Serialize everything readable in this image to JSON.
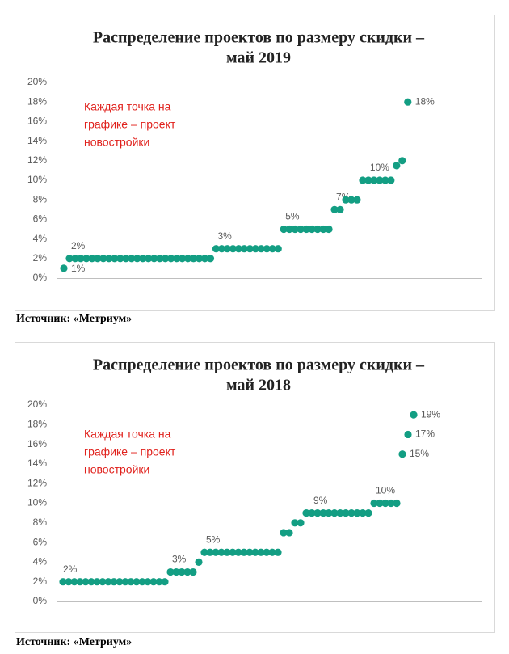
{
  "chart_data": [
    {
      "type": "dotplot",
      "title": [
        "Распределение проектов по размеру скидки –",
        "май 2019"
      ],
      "annotation": [
        "Каждая точка на",
        "графике – проект",
        "новостройки"
      ],
      "color": "#139e83",
      "ylim": [
        0,
        20
      ],
      "yticks": [
        {
          "value": 0,
          "label": "0%"
        },
        {
          "value": 2,
          "label": "2%"
        },
        {
          "value": 4,
          "label": "4%"
        },
        {
          "value": 6,
          "label": "6%"
        },
        {
          "value": 8,
          "label": "8%"
        },
        {
          "value": 10,
          "label": "10%"
        },
        {
          "value": 12,
          "label": "12%"
        },
        {
          "value": 14,
          "label": "14%"
        },
        {
          "value": 16,
          "label": "16%"
        },
        {
          "value": 18,
          "label": "18%"
        },
        {
          "value": 20,
          "label": "20%"
        }
      ],
      "values": [
        1,
        2,
        2,
        2,
        2,
        2,
        2,
        2,
        2,
        2,
        2,
        2,
        2,
        2,
        2,
        2,
        2,
        2,
        2,
        2,
        2,
        2,
        2,
        2,
        2,
        2,
        2,
        3,
        3,
        3,
        3,
        3,
        3,
        3,
        3,
        3,
        3,
        3,
        3,
        5,
        5,
        5,
        5,
        5,
        5,
        5,
        5,
        5,
        7,
        7,
        8,
        8,
        8,
        10,
        10,
        10,
        10,
        10,
        10,
        11.5,
        12,
        18
      ],
      "value_labels": [
        "1%",
        "2%",
        null,
        null,
        null,
        null,
        null,
        null,
        null,
        null,
        null,
        null,
        null,
        null,
        null,
        null,
        null,
        null,
        null,
        null,
        null,
        null,
        null,
        null,
        null,
        null,
        null,
        "3%",
        null,
        null,
        null,
        null,
        null,
        null,
        null,
        null,
        null,
        null,
        null,
        "5%",
        null,
        null,
        null,
        null,
        null,
        null,
        null,
        null,
        "7%",
        null,
        null,
        null,
        null,
        null,
        "10%",
        null,
        null,
        null,
        null,
        null,
        null,
        "18%"
      ],
      "source": "Источник: «Метриум»"
    },
    {
      "type": "dotplot",
      "title": [
        "Распределение проектов по размеру скидки –",
        "май 2018"
      ],
      "annotation": [
        "Каждая точка на",
        "графике – проект",
        "новостройки"
      ],
      "color": "#139e83",
      "ylim": [
        0,
        20
      ],
      "yticks": [
        {
          "value": 0,
          "label": "0%"
        },
        {
          "value": 2,
          "label": "2%"
        },
        {
          "value": 4,
          "label": "4%"
        },
        {
          "value": 6,
          "label": "6%"
        },
        {
          "value": 8,
          "label": "8%"
        },
        {
          "value": 10,
          "label": "10%"
        },
        {
          "value": 12,
          "label": "12%"
        },
        {
          "value": 14,
          "label": "14%"
        },
        {
          "value": 16,
          "label": "16%"
        },
        {
          "value": 18,
          "label": "18%"
        },
        {
          "value": 20,
          "label": "20%"
        }
      ],
      "values": [
        2,
        2,
        2,
        2,
        2,
        2,
        2,
        2,
        2,
        2,
        2,
        2,
        2,
        2,
        2,
        2,
        2,
        2,
        2,
        3,
        3,
        3,
        3,
        3,
        4,
        5,
        5,
        5,
        5,
        5,
        5,
        5,
        5,
        5,
        5,
        5,
        5,
        5,
        5,
        7,
        7,
        8,
        8,
        9,
        9,
        9,
        9,
        9,
        9,
        9,
        9,
        9,
        9,
        9,
        9,
        10,
        10,
        10,
        10,
        10,
        15,
        17,
        19
      ],
      "value_labels": [
        "2%",
        null,
        null,
        null,
        null,
        null,
        null,
        null,
        null,
        null,
        null,
        null,
        null,
        null,
        null,
        null,
        null,
        null,
        null,
        "3%",
        null,
        null,
        null,
        null,
        null,
        "5%",
        null,
        null,
        null,
        null,
        null,
        null,
        null,
        null,
        null,
        null,
        null,
        null,
        null,
        null,
        null,
        null,
        null,
        null,
        "9%",
        null,
        null,
        null,
        null,
        null,
        null,
        null,
        null,
        null,
        null,
        "10%",
        null,
        null,
        null,
        null,
        "15%",
        "17%",
        "19%"
      ],
      "source": "Источник: «Метриум»"
    }
  ]
}
